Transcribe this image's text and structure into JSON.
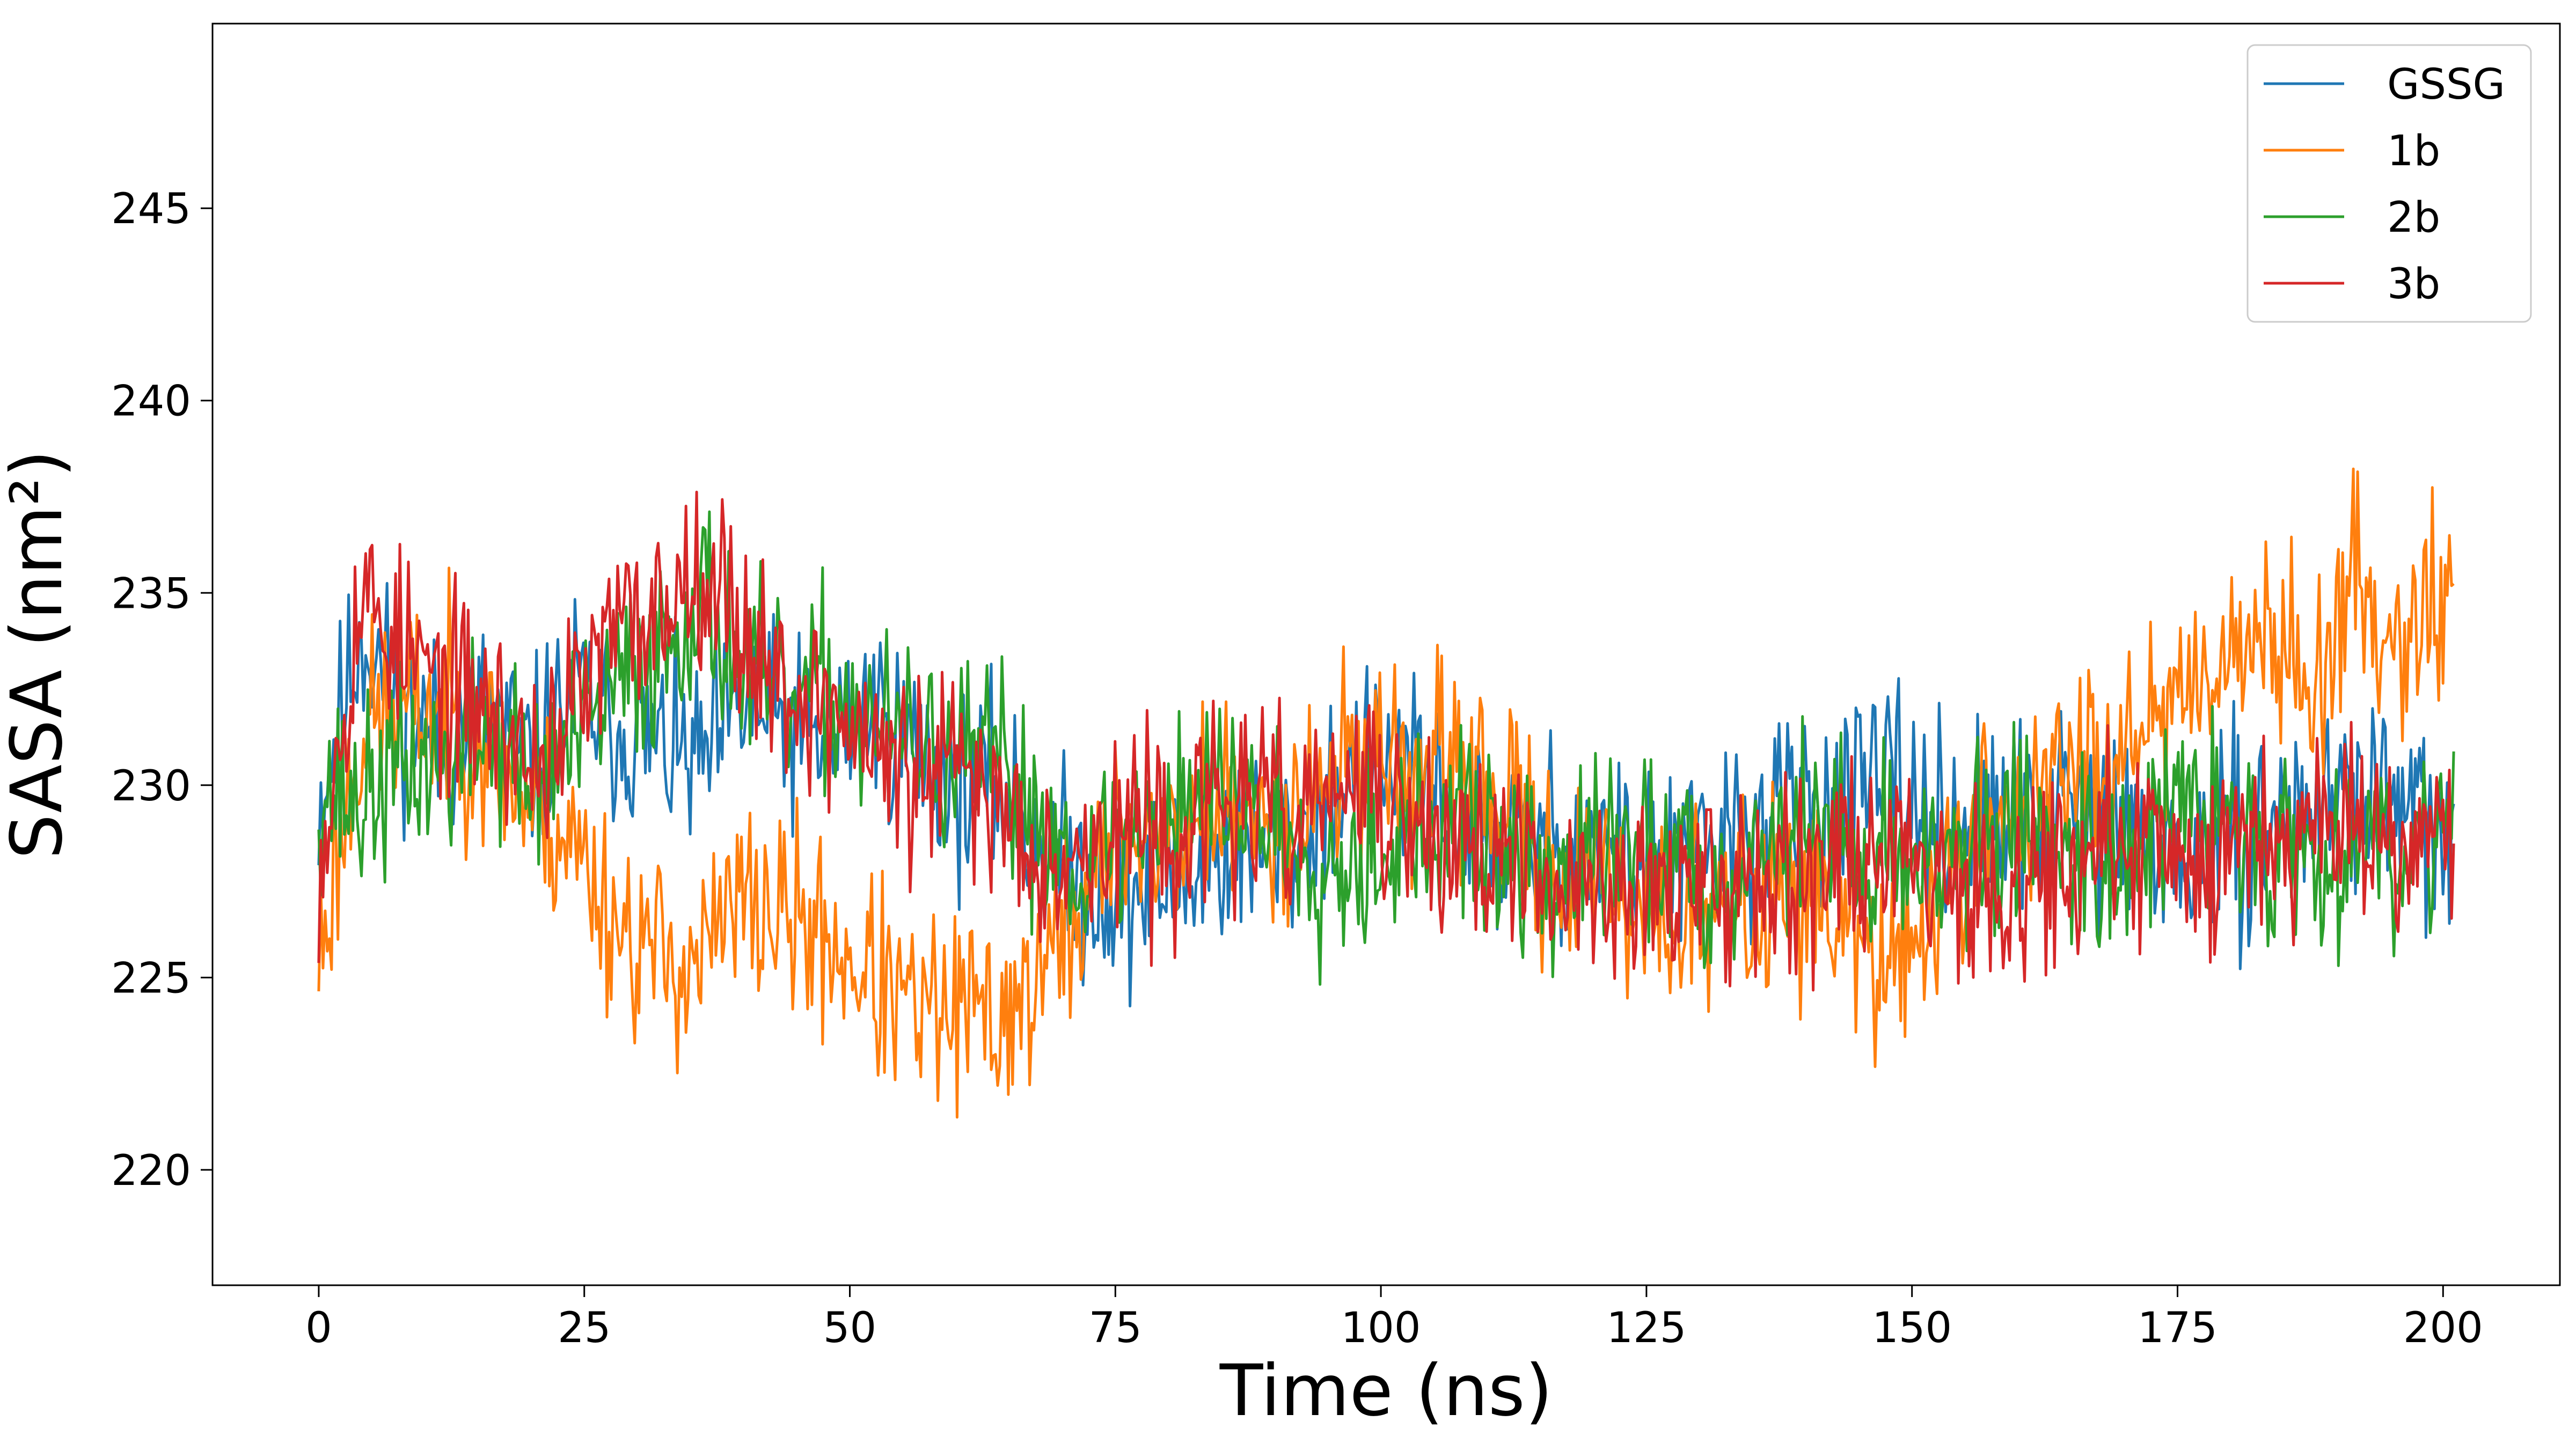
{
  "chart_data": {
    "type": "line",
    "title": "",
    "xlabel": "Time (ns)",
    "ylabel": "SASA (nm²)",
    "xlim": [
      -10,
      211
    ],
    "ylim": [
      217,
      249.8
    ],
    "xticks": [
      0,
      25,
      50,
      75,
      100,
      125,
      150,
      175,
      200
    ],
    "xtick_labels": [
      "0",
      "25",
      "50",
      "75",
      "100",
      "125",
      "150",
      "175",
      "200"
    ],
    "yticks": [
      220,
      225,
      230,
      235,
      240,
      245
    ],
    "ytick_labels": [
      "220",
      "225",
      "230",
      "235",
      "240",
      "245"
    ],
    "grid": false,
    "legend_position": "top-right",
    "x": [
      0,
      4,
      8,
      12,
      16,
      20,
      24,
      28,
      32,
      36,
      40,
      44,
      48,
      52,
      56,
      60,
      64,
      68,
      72,
      76,
      80,
      84,
      88,
      92,
      96,
      100,
      104,
      108,
      112,
      116,
      120,
      124,
      128,
      132,
      136,
      140,
      144,
      148,
      152,
      156,
      160,
      164,
      168,
      172,
      176,
      180,
      184,
      188,
      192,
      196,
      200
    ],
    "series": [
      {
        "name": "GSSG",
        "color": "#1f77b4",
        "values": [
          229.5,
          234.0,
          232.0,
          231.0,
          232.0,
          230.5,
          232.5,
          231.5,
          231.0,
          230.5,
          232.0,
          231.5,
          231.0,
          232.0,
          231.0,
          230.0,
          230.0,
          228.5,
          227.5,
          227.0,
          227.5,
          228.0,
          228.5,
          228.5,
          230.0,
          230.5,
          230.0,
          229.0,
          228.5,
          228.5,
          228.5,
          228.0,
          228.0,
          228.5,
          229.0,
          229.5,
          229.5,
          230.0,
          229.0,
          229.0,
          229.0,
          229.5,
          229.0,
          228.5,
          228.0,
          228.5,
          229.0,
          229.5,
          230.0,
          229.5,
          228.5
        ],
        "amplitude": 3.0,
        "seed": 11
      },
      {
        "name": "1b",
        "color": "#ff7f0e",
        "values": [
          225.5,
          231.5,
          232.0,
          232.0,
          231.0,
          229.5,
          228.5,
          226.5,
          225.5,
          225.5,
          227.0,
          226.5,
          226.0,
          225.0,
          224.0,
          224.0,
          224.0,
          225.0,
          227.0,
          229.0,
          228.5,
          229.5,
          229.0,
          229.5,
          230.5,
          231.0,
          230.0,
          230.5,
          229.0,
          228.0,
          227.5,
          227.0,
          226.5,
          226.5,
          227.0,
          227.5,
          226.0,
          225.0,
          227.0,
          228.5,
          229.5,
          230.0,
          231.0,
          232.0,
          232.5,
          234.0,
          233.5,
          233.0,
          235.0,
          234.0,
          235.0
        ],
        "amplitude": 3.2,
        "seed": 23
      },
      {
        "name": "2b",
        "color": "#2ca02c",
        "values": [
          230.0,
          229.5,
          230.5,
          230.5,
          231.5,
          230.0,
          231.0,
          232.5,
          233.5,
          235.0,
          233.0,
          232.0,
          232.5,
          231.5,
          231.0,
          230.5,
          230.5,
          229.0,
          228.0,
          228.5,
          229.5,
          230.0,
          229.5,
          228.5,
          228.0,
          228.5,
          228.5,
          229.0,
          228.0,
          227.5,
          228.0,
          228.5,
          228.0,
          227.5,
          228.5,
          229.0,
          228.5,
          228.0,
          228.5,
          228.0,
          229.0,
          228.5,
          228.0,
          228.5,
          229.5,
          229.0,
          228.5,
          228.0,
          229.0,
          228.0,
          229.5
        ],
        "amplitude": 3.0,
        "seed": 37
      },
      {
        "name": "3b",
        "color": "#d62728",
        "values": [
          228.0,
          235.0,
          233.5,
          232.5,
          232.0,
          230.5,
          232.0,
          234.0,
          234.5,
          236.0,
          234.0,
          232.5,
          232.0,
          231.0,
          230.0,
          230.5,
          229.5,
          228.5,
          228.0,
          229.0,
          228.5,
          229.5,
          229.5,
          229.0,
          230.0,
          229.5,
          228.5,
          228.5,
          228.0,
          227.0,
          227.5,
          227.5,
          227.0,
          227.5,
          228.0,
          228.0,
          228.0,
          228.5,
          228.0,
          227.5,
          227.5,
          228.0,
          228.0,
          228.5,
          228.0,
          228.5,
          229.0,
          229.0,
          229.5,
          228.5,
          229.0
        ],
        "amplitude": 3.0,
        "seed": 53
      }
    ]
  }
}
